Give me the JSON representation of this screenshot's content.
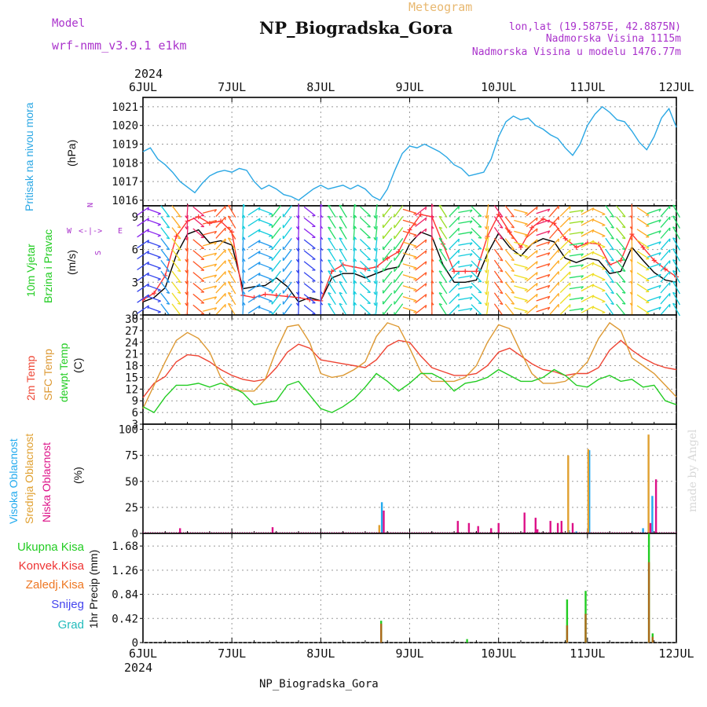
{
  "header": {
    "model_label": "Model",
    "model_name": "wrf-nmm_v3.9.1 e1km",
    "product": "Meteogram",
    "station": "NP_Biogradska_Gora",
    "lonlat": "lon,lat (19.5875E, 42.8875N)",
    "elevation": "Nadmorska Visina 1115m",
    "model_elevation": "Nadmorska Visina u modelu 1476.77m",
    "credit": "made by Angel",
    "footer_station": "NP_Biogradska_Gora"
  },
  "time_axis": {
    "year": "2024",
    "tick_labels": [
      "6JUL",
      "7JUL",
      "8JUL",
      "9JUL",
      "10JUL",
      "11JUL",
      "12JUL"
    ]
  },
  "colors": {
    "pressure": "#2aa7e4",
    "wind_speed": "#000000",
    "gust": "#ff3333",
    "t2m": "#ee4433",
    "tsfc": "#dd9933",
    "dewpoint": "#22cc22",
    "cloud_high": "#22aaee",
    "cloud_mid": "#e0a030",
    "cloud_low": "#dd1188",
    "precip_total": "#22cc22",
    "precip_conv": "#ee3333",
    "precip_frz": "#ee7722",
    "snow": "#4444ee",
    "graupel": "#22bbbb",
    "panel_label_purple": "#aa33cc"
  },
  "chart_data": [
    {
      "type": "line",
      "name": "pressure",
      "ylabel_left": "Pritisak na nivou mora",
      "unit": "(hPa)",
      "x_unit": "hours since 6JUL 00",
      "ylim": [
        1015.7,
        1021.5
      ],
      "yticks": [
        "1016",
        "1017",
        "1018",
        "1019",
        "1020",
        "1021"
      ],
      "grid": true,
      "series": [
        {
          "x": [
            0,
            2,
            4,
            6,
            8,
            10,
            12,
            14,
            16,
            18,
            20,
            22,
            24,
            26,
            28,
            30,
            32,
            34,
            36,
            38,
            40,
            42,
            44,
            46,
            48,
            50,
            52,
            54,
            56,
            58,
            60,
            62,
            64,
            66,
            68,
            70,
            72,
            74,
            76,
            78,
            80,
            82,
            84,
            86,
            88,
            90,
            92,
            94,
            96,
            98,
            100,
            102,
            104,
            106,
            108,
            110,
            112,
            114,
            116,
            118,
            120,
            122,
            124,
            126,
            128,
            130,
            132,
            134,
            136,
            138,
            140,
            142,
            144
          ],
          "y": [
            1018.6,
            1018.8,
            1018.2,
            1017.9,
            1017.5,
            1017.0,
            1016.7,
            1016.4,
            1016.9,
            1017.3,
            1017.5,
            1017.6,
            1017.5,
            1017.7,
            1017.6,
            1017.0,
            1016.6,
            1016.8,
            1016.6,
            1016.3,
            1016.2,
            1016.0,
            1016.3,
            1016.6,
            1016.8,
            1016.6,
            1016.7,
            1016.8,
            1016.6,
            1016.8,
            1016.6,
            1016.2,
            1016.0,
            1016.6,
            1017.6,
            1018.5,
            1018.9,
            1018.8,
            1019.0,
            1018.8,
            1018.6,
            1018.3,
            1017.9,
            1017.7,
            1017.3,
            1017.4,
            1017.5,
            1018.2,
            1019.4,
            1020.2,
            1020.5,
            1020.3,
            1020.4,
            1020.0,
            1019.8,
            1019.5,
            1019.3,
            1018.8,
            1018.4,
            1019.0,
            1020.0,
            1020.6,
            1021.0,
            1020.7,
            1020.3,
            1020.2,
            1019.7,
            1019.1,
            1018.7,
            1019.4,
            1020.4,
            1020.9,
            1019.9
          ]
        }
      ]
    },
    {
      "type": "line",
      "name": "wind",
      "ylabel_left": [
        "10m Vjetar",
        "Brzina i Pravac"
      ],
      "unit": "(m/s)",
      "compass": [
        "N",
        "W",
        "E",
        "S"
      ],
      "ylim": [
        0,
        10
      ],
      "yticks": [
        "0",
        "3",
        "6",
        "9"
      ],
      "grid": true,
      "barb_rows_ms": [
        0.5,
        1.5,
        2.5,
        3.5,
        4.5,
        5.5,
        6.5,
        7.5,
        8.5,
        9.5
      ],
      "series": [
        {
          "name": "wind speed",
          "x": [
            0,
            3,
            6,
            9,
            12,
            15,
            18,
            21,
            24,
            27,
            30,
            33,
            36,
            39,
            42,
            45,
            48,
            51,
            54,
            57,
            60,
            63,
            66,
            69,
            72,
            75,
            78,
            81,
            84,
            87,
            90,
            93,
            96,
            99,
            102,
            105,
            108,
            111,
            114,
            117,
            120,
            123,
            126,
            129,
            132,
            135,
            138,
            141,
            144
          ],
          "y": [
            1.2,
            1.6,
            2.5,
            5.5,
            7.4,
            7.8,
            6.6,
            6.8,
            6.4,
            2.4,
            2.6,
            2.7,
            3.4,
            2.6,
            1.2,
            1.6,
            1.3,
            3.4,
            3.8,
            3.8,
            3.4,
            3.8,
            4.2,
            4.4,
            6.5,
            7.6,
            7.2,
            4.6,
            3.0,
            3.0,
            3.2,
            5.6,
            7.5,
            6.2,
            5.4,
            6.5,
            7.0,
            6.7,
            5.2,
            4.8,
            5.2,
            5.0,
            3.8,
            4.0,
            6.2,
            5.0,
            3.9,
            3.2,
            3.0
          ]
        },
        {
          "name": "gust",
          "x": [
            0,
            3,
            6,
            9,
            12,
            15,
            18,
            21,
            24,
            27,
            30,
            33,
            36,
            39,
            42,
            45,
            48,
            51,
            54,
            57,
            60,
            63,
            66,
            69,
            72,
            75,
            78,
            81,
            84,
            87,
            90,
            93,
            96,
            99,
            102,
            105,
            108,
            111,
            114,
            117,
            120,
            123,
            126,
            129,
            132,
            135,
            138,
            141,
            144
          ],
          "y": [
            1.4,
            2.0,
            3.6,
            7.2,
            8.6,
            9.0,
            8.4,
            8.6,
            7.6,
            1.8,
            1.6,
            1.9,
            1.8,
            1.7,
            1.6,
            1.4,
            1.3,
            4.0,
            4.6,
            4.4,
            4.2,
            4.4,
            5.2,
            5.8,
            7.8,
            9.2,
            9.0,
            6.5,
            4.0,
            4.0,
            4.0,
            7.2,
            9.2,
            7.6,
            6.2,
            8.0,
            8.8,
            8.4,
            7.0,
            6.2,
            6.6,
            6.5,
            4.6,
            5.0,
            7.4,
            6.2,
            5.0,
            4.2,
            3.5
          ]
        }
      ]
    },
    {
      "type": "line",
      "name": "temperature",
      "ylabel_left": [
        "2m Temp",
        "SFC Temp",
        "dewpt Temp"
      ],
      "unit": "(C)",
      "ylim": [
        3,
        31
      ],
      "yticks": [
        "3",
        "6",
        "9",
        "12",
        "15",
        "18",
        "21",
        "24",
        "27",
        "30"
      ],
      "grid": true,
      "series": [
        {
          "name": "2m Temp",
          "x": [
            0,
            3,
            6,
            9,
            12,
            15,
            18,
            21,
            24,
            27,
            30,
            33,
            36,
            39,
            42,
            45,
            48,
            51,
            54,
            57,
            60,
            63,
            66,
            69,
            72,
            75,
            78,
            81,
            84,
            87,
            90,
            93,
            96,
            99,
            102,
            105,
            108,
            111,
            114,
            117,
            120,
            123,
            126,
            129,
            132,
            135,
            138,
            141,
            144
          ],
          "y": [
            9.8,
            13.5,
            15.2,
            19.0,
            20.8,
            20.5,
            19.0,
            17.0,
            15.5,
            14.5,
            14.0,
            14.5,
            17.5,
            21.5,
            23.5,
            22.5,
            19.5,
            19.0,
            18.5,
            18.0,
            17.5,
            19.5,
            23.0,
            24.5,
            24.0,
            20.5,
            17.5,
            16.5,
            15.5,
            15.5,
            16.0,
            18.0,
            21.5,
            22.5,
            20.5,
            18.5,
            17.0,
            16.5,
            15.5,
            16.0,
            16.0,
            17.5,
            22.0,
            24.5,
            22.0,
            20.0,
            18.5,
            17.5,
            17.0
          ]
        },
        {
          "name": "SFC Temp",
          "x": [
            0,
            3,
            6,
            9,
            12,
            15,
            18,
            21,
            24,
            27,
            30,
            33,
            36,
            39,
            42,
            45,
            48,
            51,
            54,
            57,
            60,
            63,
            66,
            69,
            72,
            75,
            78,
            81,
            84,
            87,
            90,
            93,
            96,
            99,
            102,
            105,
            108,
            111,
            114,
            117,
            120,
            123,
            126,
            129,
            132,
            135,
            138,
            141,
            144
          ],
          "y": [
            7.0,
            13.0,
            19.0,
            24.5,
            26.5,
            25.0,
            21.5,
            15.0,
            12.0,
            11.5,
            11.5,
            14.5,
            22.0,
            28.0,
            28.5,
            24.0,
            16.0,
            15.0,
            15.5,
            17.0,
            19.0,
            25.5,
            29.0,
            28.0,
            22.5,
            16.5,
            14.0,
            14.0,
            14.0,
            15.0,
            18.0,
            24.0,
            28.5,
            27.5,
            21.5,
            16.0,
            13.5,
            13.5,
            14.0,
            16.0,
            19.0,
            25.0,
            29.0,
            27.0,
            20.0,
            18.0,
            16.0,
            13.0,
            10.0
          ]
        },
        {
          "name": "dewpt Temp",
          "x": [
            0,
            3,
            6,
            9,
            12,
            15,
            18,
            21,
            24,
            27,
            30,
            33,
            36,
            39,
            42,
            45,
            48,
            51,
            54,
            57,
            60,
            63,
            66,
            69,
            72,
            75,
            78,
            81,
            84,
            87,
            90,
            93,
            96,
            99,
            102,
            105,
            108,
            111,
            114,
            117,
            120,
            123,
            126,
            129,
            132,
            135,
            138,
            141,
            144
          ],
          "y": [
            7.5,
            6.0,
            10.0,
            13.0,
            13.0,
            13.5,
            12.5,
            13.5,
            12.5,
            11.0,
            8.0,
            8.5,
            9.0,
            13.0,
            14.0,
            10.5,
            7.0,
            6.0,
            7.5,
            9.5,
            12.5,
            16.0,
            14.0,
            11.5,
            13.5,
            16.0,
            16.0,
            14.5,
            11.5,
            13.5,
            14.0,
            15.0,
            17.0,
            15.5,
            14.0,
            14.0,
            15.0,
            17.0,
            15.5,
            13.0,
            12.5,
            14.5,
            15.5,
            14.0,
            14.5,
            12.5,
            13.0,
            9.0,
            8.0
          ]
        }
      ]
    },
    {
      "type": "bar",
      "name": "cloud",
      "ylabel_left": [
        "Visoka Oblacnost",
        "Srednja Oblacnost",
        "Niska Oblacnost"
      ],
      "unit": "(%)",
      "ylim": [
        0,
        105
      ],
      "yticks": [
        "0",
        "25",
        "50",
        "75",
        "100"
      ],
      "grid": true,
      "series": [
        {
          "name": "Visoka Oblacnost",
          "x": [
            64.5,
            115,
            117,
            120.5,
            135,
            137.5
          ],
          "values": [
            30,
            3,
            2,
            80,
            5,
            36
          ]
        },
        {
          "name": "Srednja Oblacnost",
          "x": [
            63.8,
            114.8,
            120.2,
            136.5
          ],
          "values": [
            8,
            75,
            81,
            95
          ]
        },
        {
          "name": "Niska Oblacnost",
          "x": [
            10,
            35,
            65,
            85,
            88,
            90.5,
            94,
            96,
            103,
            106,
            106.5,
            110,
            112,
            113,
            116,
            137,
            138.5
          ],
          "values": [
            5,
            6,
            22,
            12,
            10,
            7,
            5,
            10,
            20,
            15,
            4,
            12,
            10,
            12,
            10,
            10,
            52
          ]
        }
      ]
    },
    {
      "type": "bar",
      "name": "precip",
      "ylabel_left": [
        "Ukupna Kisa",
        "Konvek.Kisa",
        "Zaledj.Kisa",
        "Snijeg",
        "Grad"
      ],
      "unit": "1hr Precip (mm)",
      "ylim": [
        0,
        1.9
      ],
      "yticks": [
        "0",
        "0.42",
        "0.84",
        "1.26",
        "1.68"
      ],
      "grid": true,
      "series": [
        {
          "name": "Ukupna Kisa",
          "x": [
            64.3,
            87.5,
            114.5,
            119.5,
            136.6,
            137.6
          ],
          "values": [
            0.38,
            0.06,
            0.75,
            0.9,
            1.9,
            0.16
          ]
        },
        {
          "name": "Konvek.Kisa",
          "x": [
            64.3,
            114.5,
            119.5,
            136.6,
            137.6
          ],
          "values": [
            0.33,
            0.3,
            0.5,
            1.4,
            0.1
          ]
        }
      ]
    }
  ]
}
